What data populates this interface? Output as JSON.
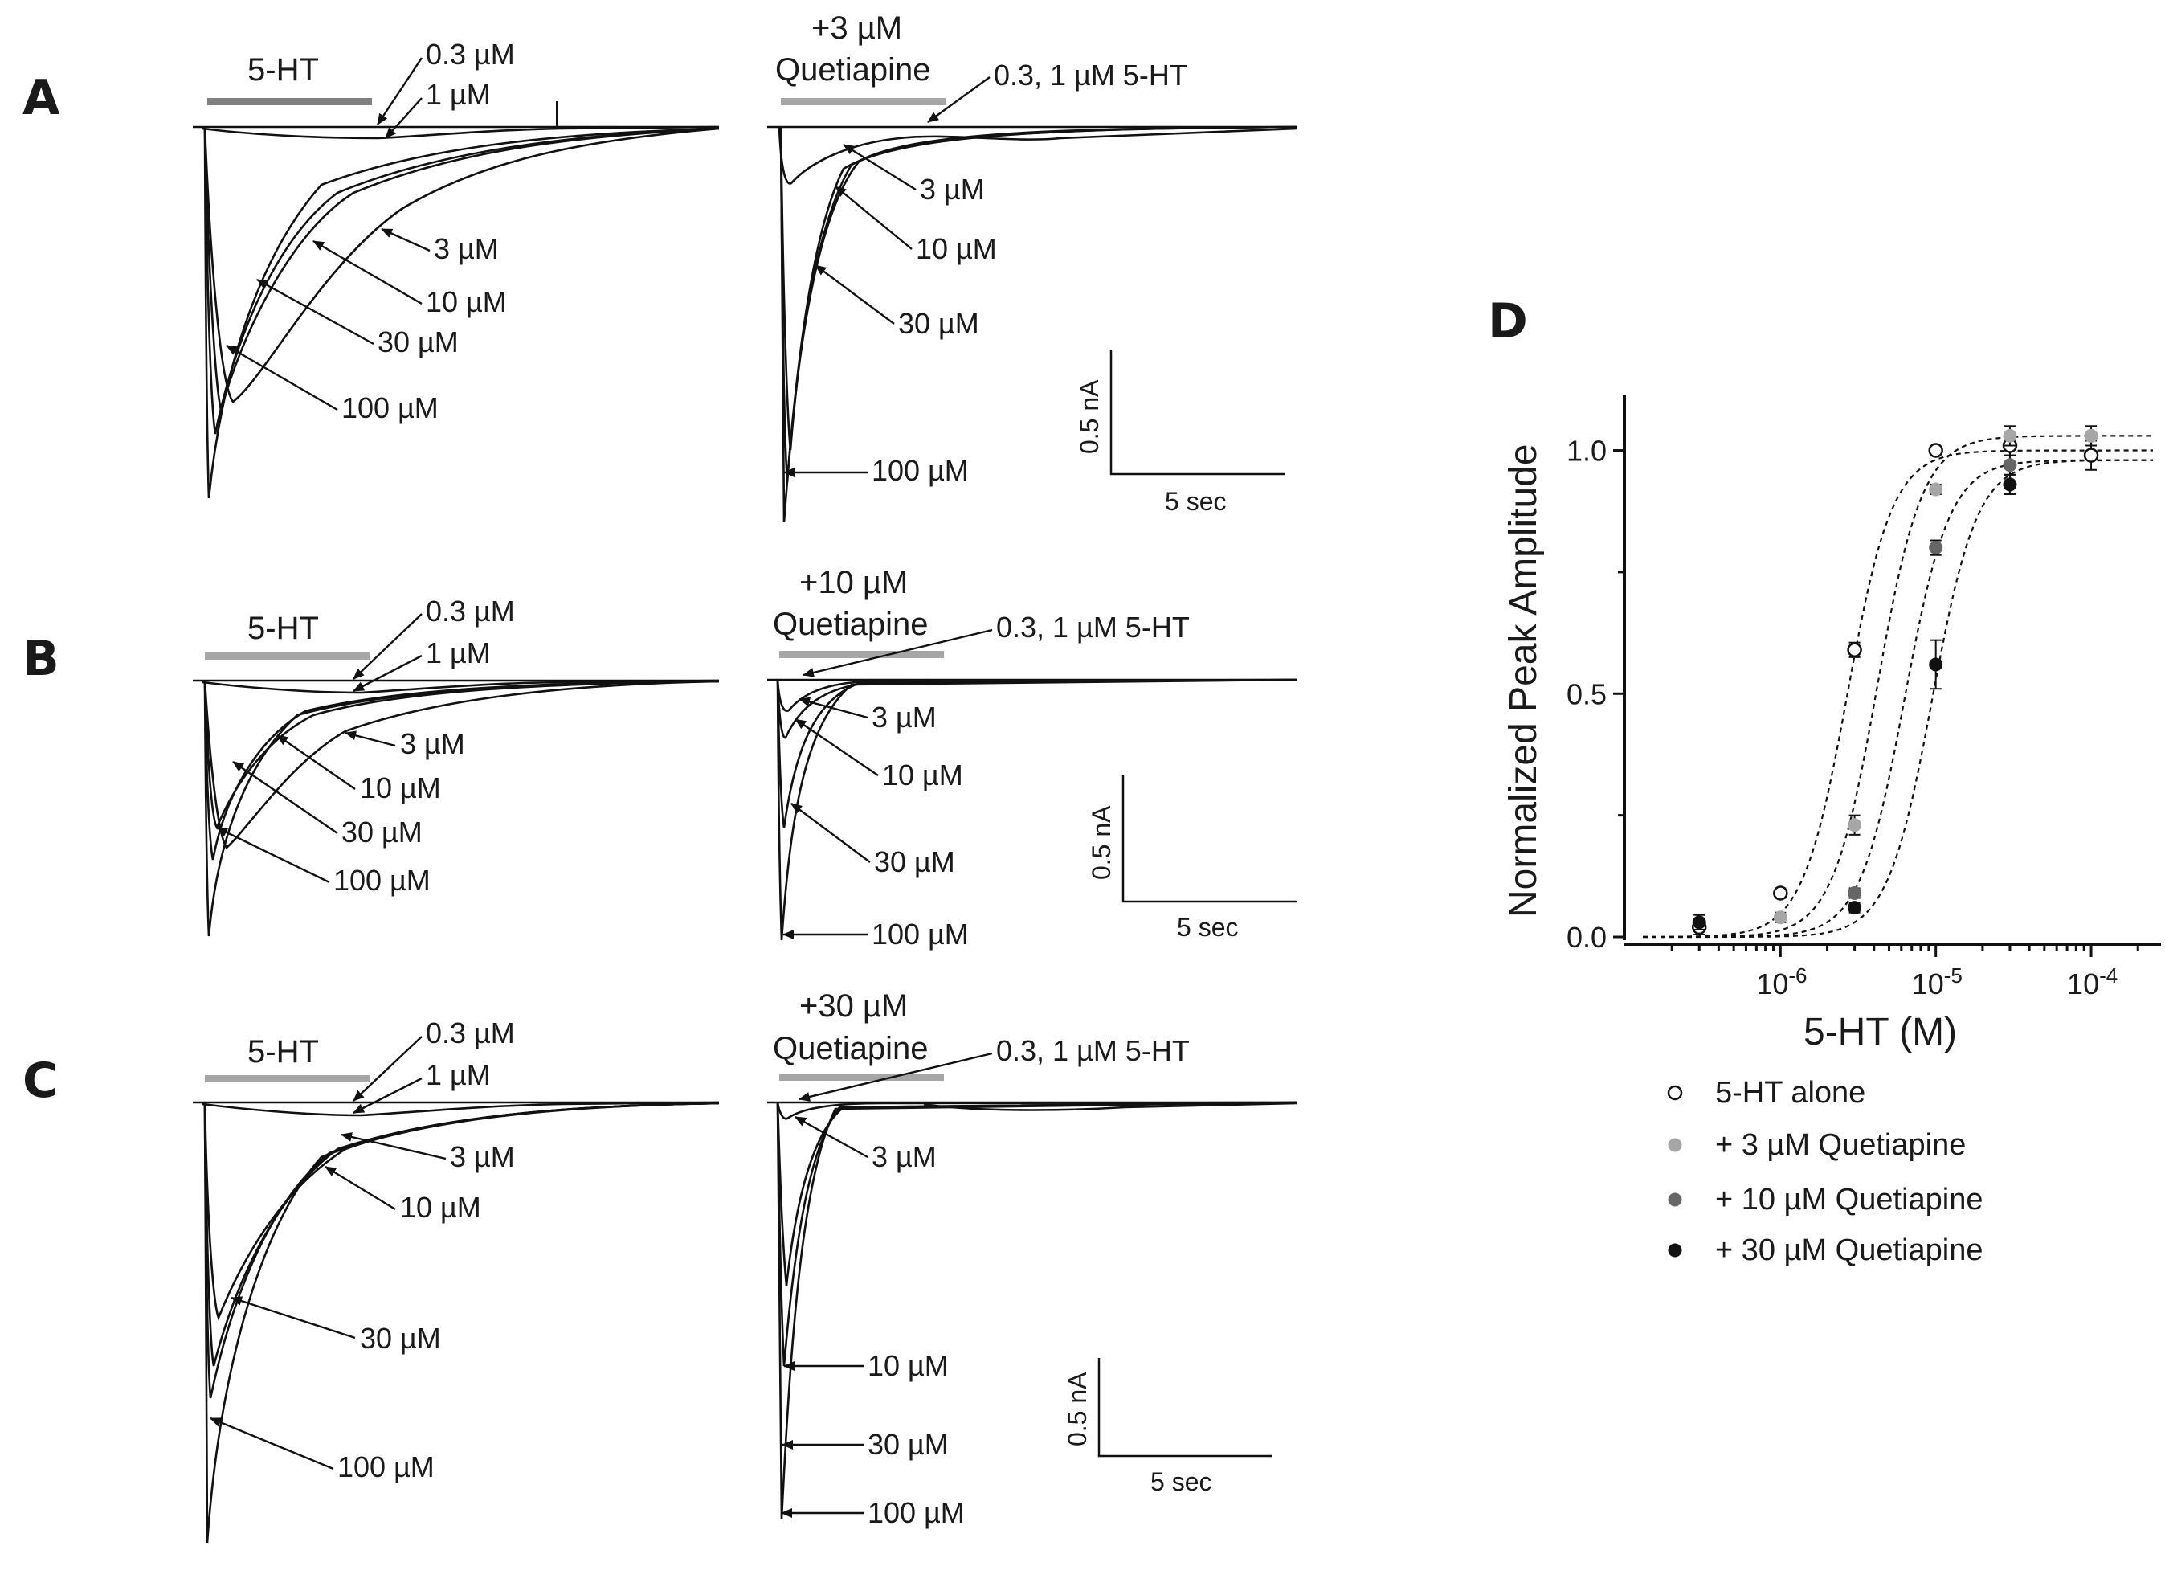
{
  "panels": {
    "A": {
      "letter": "A",
      "left_bar": "5-HT",
      "left_labels": [
        "0.3 µM",
        "1 µM",
        "3 µM",
        "10 µM",
        "30 µM",
        "100 µM"
      ],
      "right_bar_line1": "+3 µM",
      "right_bar_line2": "Quetiapine",
      "right_labels": [
        "0.3, 1 µM 5-HT",
        "3 µM",
        "10 µM",
        "30 µM",
        "100 µM"
      ],
      "scale_y": "0.5 nA",
      "scale_x": "5 sec"
    },
    "B": {
      "letter": "B",
      "left_bar": "5-HT",
      "left_labels": [
        "0.3 µM",
        "1 µM",
        "3 µM",
        "10 µM",
        "30 µM",
        "100 µM"
      ],
      "right_bar_line1": "+10 µM",
      "right_bar_line2": "Quetiapine",
      "right_labels": [
        "0.3, 1 µM 5-HT",
        "3 µM",
        "10 µM",
        "30 µM",
        "100 µM"
      ],
      "scale_y": "0.5 nA",
      "scale_x": "5 sec"
    },
    "C": {
      "letter": "C",
      "left_bar": "5-HT",
      "left_labels": [
        "0.3 µM",
        "1 µM",
        "3 µM",
        "10 µM",
        "30 µM",
        "100 µM"
      ],
      "right_bar_line1": "+30 µM",
      "right_bar_line2": "Quetiapine",
      "right_labels": [
        "0.3, 1 µM 5-HT",
        "3 µM",
        "10 µM",
        "30 µM",
        "100 µM"
      ],
      "scale_y": "0.5 nA",
      "scale_x": "5 sec"
    }
  },
  "panel_d_letter": "D",
  "colors": {
    "trace": "#111111",
    "bar_A": "#808080",
    "bar_light": "#a6a6a6",
    "open": "#ffffff",
    "light_gray": "#a6a6a6",
    "dark_gray": "#666666",
    "black": "#111111"
  },
  "chart_data": {
    "type": "scatter",
    "xlabel": "5-HT (M)",
    "ylabel": "Normalized Peak Amplitude",
    "xscale": "log",
    "xlim": [
      1.3e-07,
      0.00025
    ],
    "ylim": [
      0,
      1.1
    ],
    "yticks": [
      "0.0",
      "0.5",
      "1.0"
    ],
    "xticks": [
      {
        "base": "10",
        "exp": "-6",
        "value": 1e-06
      },
      {
        "base": "10",
        "exp": "-5",
        "value": 1e-05
      },
      {
        "base": "10",
        "exp": "-4",
        "value": 0.0001
      }
    ],
    "fit_lines": "dashed sigmoid fits",
    "series": [
      {
        "name": "5-HT alone",
        "marker": "open",
        "x": [
          3e-07,
          1e-06,
          3e-06,
          1e-05,
          3e-05,
          0.0001
        ],
        "y": [
          0.02,
          0.09,
          0.59,
          1.0,
          1.01,
          0.99
        ],
        "err": [
          0.015,
          0.01,
          0.015,
          0.005,
          0.02,
          0.03
        ],
        "ec50": 2.7e-06,
        "hill": 3.0,
        "top": 1.0
      },
      {
        "name": "+ 3 µM Quetiapine",
        "marker": "light",
        "x": [
          1e-06,
          3e-06,
          1e-05,
          3e-05,
          0.0001
        ],
        "y": [
          0.04,
          0.23,
          0.92,
          1.03,
          1.03
        ],
        "err": [
          0.01,
          0.02,
          0.01,
          0.02,
          0.02
        ],
        "ec50": 4.2e-06,
        "hill": 3.0,
        "top": 1.03
      },
      {
        "name": "+ 10 µM Quetiapine",
        "marker": "dark",
        "x": [
          3e-06,
          1e-05,
          3e-05
        ],
        "y": [
          0.09,
          0.8,
          0.97
        ],
        "err": [
          0.01,
          0.015,
          0.02
        ],
        "ec50": 6.3e-06,
        "hill": 3.0,
        "top": 0.98
      },
      {
        "name": "+ 30 µM Quetiapine",
        "marker": "black",
        "x": [
          3e-07,
          3e-06,
          1e-05,
          3e-05
        ],
        "y": [
          0.03,
          0.06,
          0.56,
          0.93
        ],
        "err": [
          0.015,
          0.01,
          0.05,
          0.02
        ],
        "ec50": 9.5e-06,
        "hill": 3.0,
        "top": 0.98
      }
    ],
    "legend": [
      "5-HT alone",
      "+ 3 µM Quetiapine",
      "+ 10 µM Quetiapine",
      "+ 30 µM Quetiapine"
    ]
  }
}
